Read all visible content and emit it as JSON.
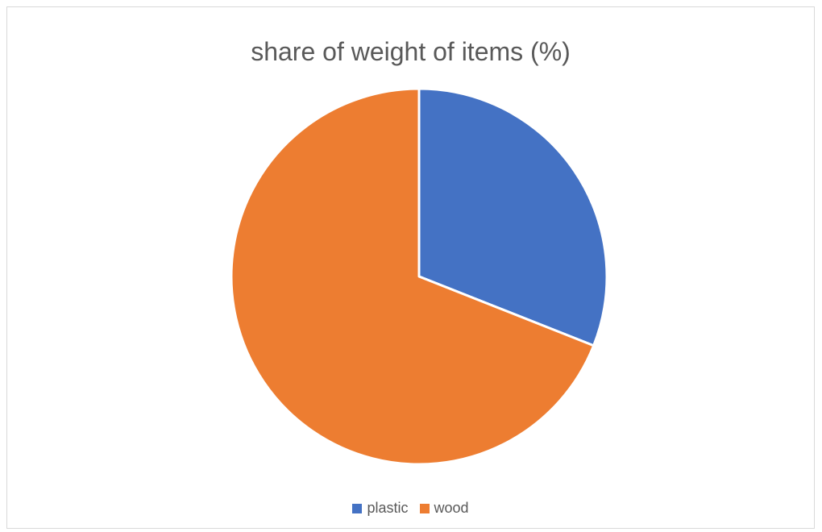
{
  "chart_data": {
    "type": "pie",
    "title": "share of weight of items (%)",
    "categories": [
      "plastic",
      "wood"
    ],
    "values": [
      31,
      69
    ],
    "colors": [
      "#4472C4",
      "#ED7D31"
    ],
    "start_angle_deg": 0,
    "direction": "clockwise",
    "legend_position": "bottom"
  }
}
